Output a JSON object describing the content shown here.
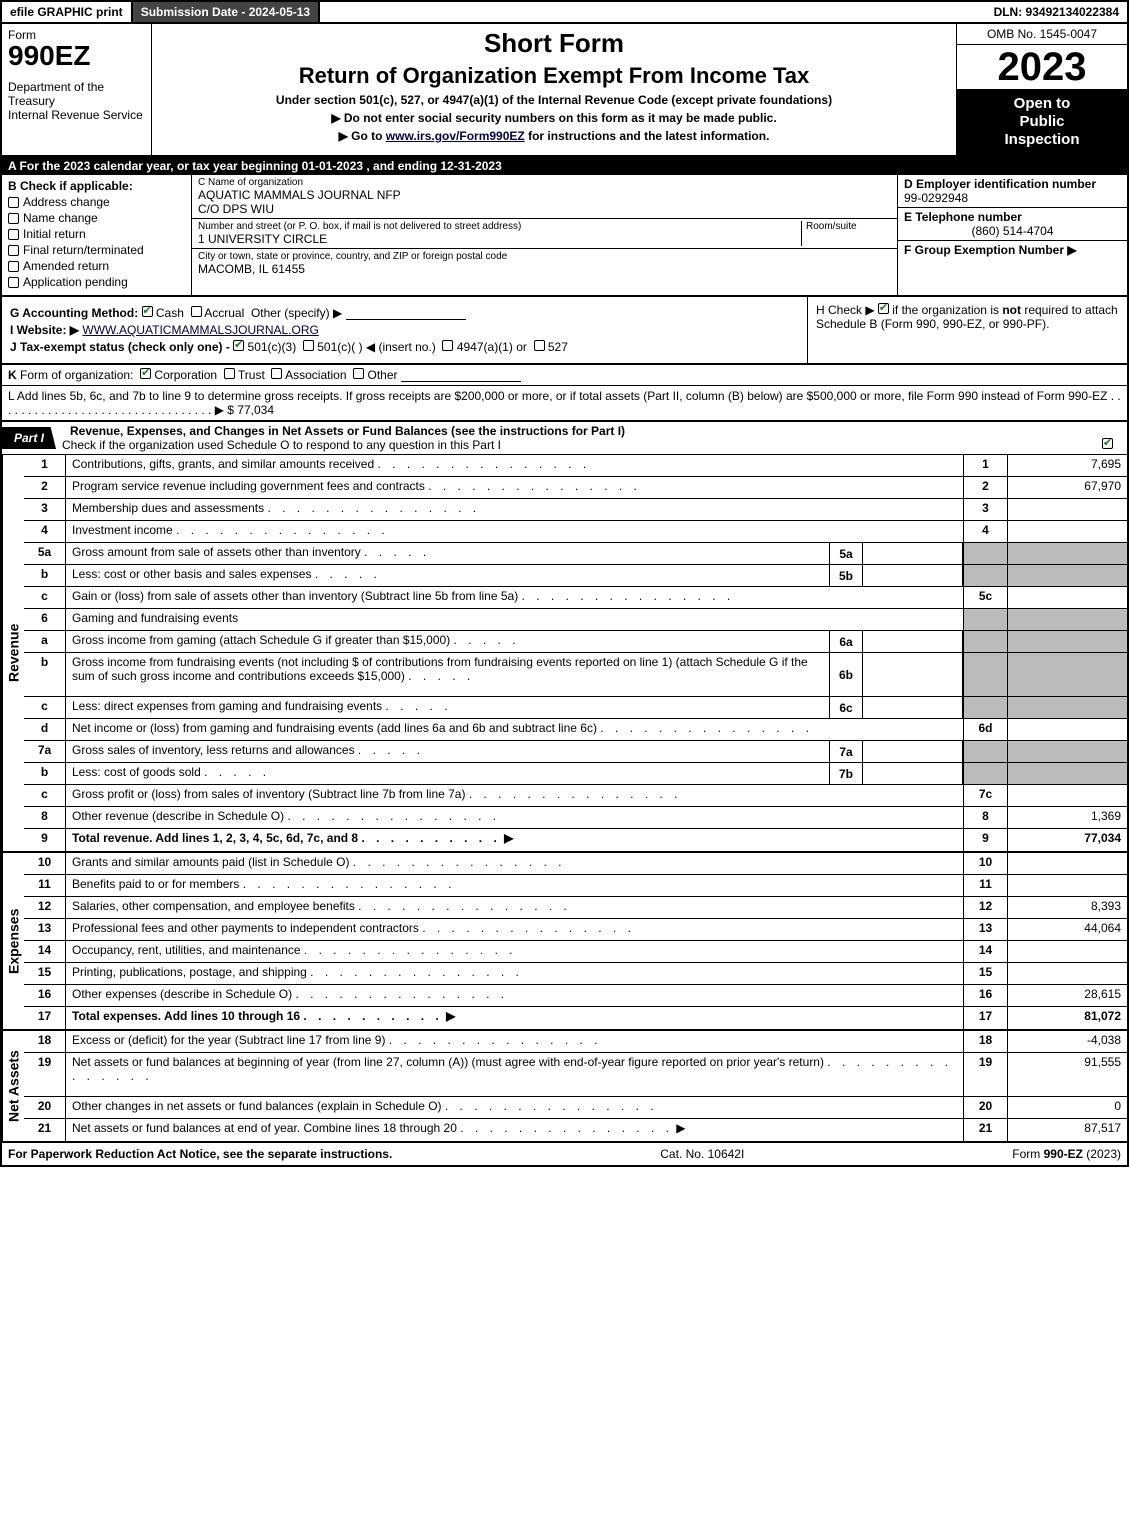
{
  "top": {
    "efile": "efile GRAPHIC print",
    "submission": "Submission Date - 2024-05-13",
    "dln": "DLN: 93492134022384"
  },
  "header": {
    "form_word": "Form",
    "form_num": "990EZ",
    "dept1": "Department of the Treasury",
    "dept2": "Internal Revenue Service",
    "short": "Short Form",
    "title": "Return of Organization Exempt From Income Tax",
    "under": "Under section 501(c), 527, or 4947(a)(1) of the Internal Revenue Code (except private foundations)",
    "bullet1": "▶ Do not enter social security numbers on this form as it may be made public.",
    "bullet2_pre": "▶ Go to ",
    "bullet2_link": "www.irs.gov/Form990EZ",
    "bullet2_post": " for instructions and the latest information.",
    "omb": "OMB No. 1545-0047",
    "year": "2023",
    "inspection1": "Open to",
    "inspection2": "Public",
    "inspection3": "Inspection"
  },
  "row_a": "A  For the 2023 calendar year, or tax year beginning 01-01-2023 , and ending 12-31-2023",
  "b": {
    "head": "B  Check if applicable:",
    "items": [
      "Address change",
      "Name change",
      "Initial return",
      "Final return/terminated",
      "Amended return",
      "Application pending"
    ]
  },
  "c": {
    "name_lbl": "C Name of organization",
    "name": "AQUATIC MAMMALS JOURNAL NFP",
    "care": "C/O DPS WIU",
    "street_lbl": "Number and street (or P. O. box, if mail is not delivered to street address)",
    "suite_lbl": "Room/suite",
    "street": "1 UNIVERSITY CIRCLE",
    "city_lbl": "City or town, state or province, country, and ZIP or foreign postal code",
    "city": "MACOMB, IL  61455"
  },
  "d": {
    "ein_lbl": "D Employer identification number",
    "ein": "99-0292948",
    "tel_lbl": "E Telephone number",
    "tel": "(860) 514-4704",
    "grp_lbl": "F Group Exemption Number  ▶"
  },
  "g": {
    "method": "G Accounting Method:",
    "cash": "Cash",
    "accrual": "Accrual",
    "other": "Other (specify) ▶"
  },
  "h": {
    "text1": "H  Check ▶ ",
    "text2": " if the organization is ",
    "not": "not",
    "text3": " required to attach Schedule B (Form 990, 990-EZ, or 990-PF)."
  },
  "i": {
    "label": "I Website: ▶",
    "value": "WWW.AQUATICMAMMALSJOURNAL.ORG"
  },
  "j": {
    "text": "J Tax-exempt status (check only one) - ",
    "c3": "501(c)(3)",
    "c": "501(c)(   ) ◀ (insert no.)",
    "s4947": "4947(a)(1) or",
    "s527": "527"
  },
  "k": "K Form of organization:   Corporation   Trust   Association   Other",
  "k_checks": {
    "corp": true,
    "trust": false,
    "assoc": false,
    "other": false
  },
  "l": {
    "text": "L Add lines 5b, 6c, and 7b to line 9 to determine gross receipts. If gross receipts are $200,000 or more, or if total assets (Part II, column (B) below) are $500,000 or more, file Form 990 instead of Form 990-EZ . . . . . . . . . . . . . . . . . . . . . . . . . . . . . . . . . ▶ $",
    "amount": "77,034"
  },
  "part1": {
    "tab": "Part I",
    "title": "Revenue, Expenses, and Changes in Net Assets or Fund Balances (see the instructions for Part I)",
    "sub": "Check if the organization used Schedule O to respond to any question in this Part I"
  },
  "revenue": {
    "side": "Revenue",
    "rows": [
      {
        "n": "1",
        "d": "Contributions, gifts, grants, and similar amounts received",
        "rn": "1",
        "v": "7,695"
      },
      {
        "n": "2",
        "d": "Program service revenue including government fees and contracts",
        "rn": "2",
        "v": "67,970"
      },
      {
        "n": "3",
        "d": "Membership dues and assessments",
        "rn": "3",
        "v": ""
      },
      {
        "n": "4",
        "d": "Investment income",
        "rn": "4",
        "v": ""
      },
      {
        "n": "5a",
        "d": "Gross amount from sale of assets other than inventory",
        "sub": "5a",
        "sv": "",
        "shade": true
      },
      {
        "n": "b",
        "d": "Less: cost or other basis and sales expenses",
        "sub": "5b",
        "sv": "",
        "shade": true
      },
      {
        "n": "c",
        "d": "Gain or (loss) from sale of assets other than inventory (Subtract line 5b from line 5a)",
        "rn": "5c",
        "v": ""
      },
      {
        "n": "6",
        "d": "Gaming and fundraising events",
        "shade": true,
        "noval": true
      },
      {
        "n": "a",
        "d": "Gross income from gaming (attach Schedule G if greater than $15,000)",
        "sub": "6a",
        "sv": "",
        "shade": true
      },
      {
        "n": "b",
        "d": "Gross income from fundraising events (not including $                    of contributions from fundraising events reported on line 1) (attach Schedule G if the sum of such gross income and contributions exceeds $15,000)",
        "sub": "6b",
        "sv": "",
        "shade": true,
        "tall": true
      },
      {
        "n": "c",
        "d": "Less: direct expenses from gaming and fundraising events",
        "sub": "6c",
        "sv": "",
        "shade": true
      },
      {
        "n": "d",
        "d": "Net income or (loss) from gaming and fundraising events (add lines 6a and 6b and subtract line 6c)",
        "rn": "6d",
        "v": ""
      },
      {
        "n": "7a",
        "d": "Gross sales of inventory, less returns and allowances",
        "sub": "7a",
        "sv": "",
        "shade": true
      },
      {
        "n": "b",
        "d": "Less: cost of goods sold",
        "sub": "7b",
        "sv": "",
        "shade": true
      },
      {
        "n": "c",
        "d": "Gross profit or (loss) from sales of inventory (Subtract line 7b from line 7a)",
        "rn": "7c",
        "v": ""
      },
      {
        "n": "8",
        "d": "Other revenue (describe in Schedule O)",
        "rn": "8",
        "v": "1,369"
      },
      {
        "n": "9",
        "d": "Total revenue. Add lines 1, 2, 3, 4, 5c, 6d, 7c, and 8",
        "rn": "9",
        "v": "77,034",
        "bold": true,
        "arrow": true
      }
    ]
  },
  "expenses": {
    "side": "Expenses",
    "rows": [
      {
        "n": "10",
        "d": "Grants and similar amounts paid (list in Schedule O)",
        "rn": "10",
        "v": ""
      },
      {
        "n": "11",
        "d": "Benefits paid to or for members",
        "rn": "11",
        "v": ""
      },
      {
        "n": "12",
        "d": "Salaries, other compensation, and employee benefits",
        "rn": "12",
        "v": "8,393"
      },
      {
        "n": "13",
        "d": "Professional fees and other payments to independent contractors",
        "rn": "13",
        "v": "44,064"
      },
      {
        "n": "14",
        "d": "Occupancy, rent, utilities, and maintenance",
        "rn": "14",
        "v": ""
      },
      {
        "n": "15",
        "d": "Printing, publications, postage, and shipping",
        "rn": "15",
        "v": ""
      },
      {
        "n": "16",
        "d": "Other expenses (describe in Schedule O)",
        "rn": "16",
        "v": "28,615"
      },
      {
        "n": "17",
        "d": "Total expenses. Add lines 10 through 16",
        "rn": "17",
        "v": "81,072",
        "bold": true,
        "arrow": true
      }
    ]
  },
  "netassets": {
    "side": "Net Assets",
    "rows": [
      {
        "n": "18",
        "d": "Excess or (deficit) for the year (Subtract line 17 from line 9)",
        "rn": "18",
        "v": "-4,038"
      },
      {
        "n": "19",
        "d": "Net assets or fund balances at beginning of year (from line 27, column (A)) (must agree with end-of-year figure reported on prior year's return)",
        "rn": "19",
        "v": "91,555",
        "tall": true
      },
      {
        "n": "20",
        "d": "Other changes in net assets or fund balances (explain in Schedule O)",
        "rn": "20",
        "v": "0"
      },
      {
        "n": "21",
        "d": "Net assets or fund balances at end of year. Combine lines 18 through 20",
        "rn": "21",
        "v": "87,517",
        "arrow": true
      }
    ]
  },
  "footer": {
    "left": "For Paperwork Reduction Act Notice, see the separate instructions.",
    "mid": "Cat. No. 10642I",
    "right_pre": "Form ",
    "right_form": "990-EZ",
    "right_post": " (2023)"
  },
  "colors": {
    "black": "#000000",
    "dark_gray": "#444444",
    "mid_gray": "#888888",
    "shade": "#bbbbbb",
    "link": "#000044",
    "check_green": "#1a7f1a",
    "white": "#ffffff"
  },
  "typography": {
    "base_font": "Arial",
    "base_size_pt": 9,
    "year_size_pt": 30,
    "form_num_size_pt": 21,
    "title_size_pt": 16
  }
}
